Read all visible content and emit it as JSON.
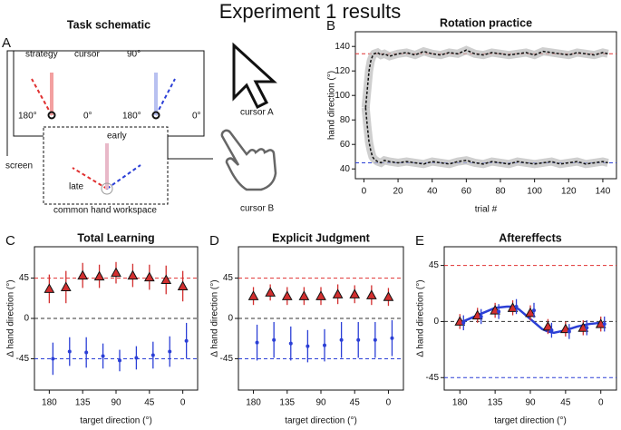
{
  "title": "Experiment 1 results",
  "schematic": {
    "label": "A",
    "title": "Task schematic",
    "strategy": "strategy",
    "cursor": "cursor",
    "deg90": "90°",
    "deg180a": "180°",
    "deg0a": "0°",
    "deg180b": "180°",
    "deg0b": "0°",
    "screen": "screen",
    "early": "early",
    "late": "late",
    "workspace": "common hand workspace",
    "cursorA": "cursor A",
    "cursorB": "cursor B"
  },
  "chart_data": [
    {
      "type": "line",
      "label": "B",
      "title": "Rotation practice",
      "xlabel": "trial #",
      "ylabel": "hand direction (°)",
      "xlim": [
        -5,
        148
      ],
      "ylim": [
        32,
        152
      ],
      "xticks": [
        0,
        20,
        40,
        60,
        80,
        100,
        120,
        140
      ],
      "yticks": [
        40,
        60,
        80,
        100,
        120,
        140
      ],
      "x": [
        1,
        2,
        3,
        4,
        5,
        6,
        8,
        10,
        12,
        15,
        20,
        25,
        30,
        35,
        40,
        45,
        50,
        55,
        60,
        65,
        70,
        75,
        80,
        85,
        90,
        95,
        100,
        105,
        110,
        115,
        120,
        125,
        130,
        135,
        140,
        143
      ],
      "hlines": [
        {
          "y": 134,
          "color": "#e03030"
        },
        {
          "y": 45,
          "color": "#2b3fd6"
        }
      ],
      "series": [
        {
          "color": "#111111",
          "values": [
            90,
            105,
            120,
            128,
            132,
            134,
            135,
            133,
            134,
            132,
            134,
            135,
            133,
            136,
            134,
            133,
            135,
            134,
            137,
            134,
            133,
            135,
            134,
            133,
            134,
            135,
            133,
            136,
            135,
            134,
            133,
            135,
            134,
            133,
            135,
            134
          ]
        },
        {
          "color": "#111111",
          "values": [
            90,
            75,
            62,
            55,
            50,
            48,
            46,
            45,
            47,
            46,
            45,
            46,
            45,
            44,
            46,
            45,
            44,
            46,
            47,
            45,
            44,
            46,
            45,
            44,
            46,
            45,
            44,
            45,
            46,
            44,
            45,
            46,
            44,
            45,
            46,
            45
          ]
        }
      ]
    },
    {
      "type": "errorbar",
      "label": "C",
      "title": "Total Learning",
      "xlabel": "target direction (°)",
      "ylabel": "Δ hand direction (°)",
      "xlim": [
        200,
        -20
      ],
      "ylim": [
        -80,
        80
      ],
      "xticks": [
        180,
        135,
        90,
        45,
        0
      ],
      "yticks": [
        45,
        0,
        -45
      ],
      "x": [
        180,
        157.5,
        135,
        112.5,
        90,
        67.5,
        45,
        22.5,
        0
      ],
      "hlines": [
        {
          "y": 45,
          "color": "#e03030"
        },
        {
          "y": 0,
          "color": "#333333"
        },
        {
          "y": -45,
          "color": "#2b3fd6"
        }
      ],
      "series": [
        {
          "color": "#d32f2f",
          "marker": "triangle",
          "values": [
            33,
            35,
            48,
            47,
            51,
            48,
            46,
            43,
            36
          ],
          "errors": [
            16,
            18,
            14,
            13,
            12,
            13,
            14,
            16,
            17
          ]
        },
        {
          "color": "#2b3fd6",
          "marker": "circle",
          "values": [
            -45,
            -37,
            -38,
            -42,
            -47,
            -44,
            -41,
            -37,
            -25
          ],
          "errors": [
            18,
            16,
            17,
            14,
            12,
            13,
            15,
            17,
            20
          ]
        }
      ]
    },
    {
      "type": "errorbar",
      "label": "D",
      "title": "Explicit Judgment",
      "xlabel": "target direction (°)",
      "ylabel": "Δ hand direction (°)",
      "xlim": [
        200,
        -20
      ],
      "ylim": [
        -80,
        80
      ],
      "xticks": [
        180,
        135,
        90,
        45,
        0
      ],
      "yticks": [
        45,
        0,
        -45
      ],
      "x": [
        180,
        157.5,
        135,
        112.5,
        90,
        67.5,
        45,
        22.5,
        0
      ],
      "hlines": [
        {
          "y": 45,
          "color": "#e03030"
        },
        {
          "y": 0,
          "color": "#333333"
        },
        {
          "y": -45,
          "color": "#2b3fd6"
        }
      ],
      "series": [
        {
          "color": "#d32f2f",
          "marker": "triangle",
          "values": [
            25,
            29,
            25,
            25,
            25,
            27,
            27,
            26,
            24
          ],
          "errors": [
            10,
            9,
            10,
            10,
            10,
            11,
            10,
            11,
            10
          ]
        },
        {
          "color": "#2b3fd6",
          "marker": "circle",
          "values": [
            -27,
            -24,
            -28,
            -31,
            -30,
            -24,
            -24,
            -24,
            -22
          ],
          "errors": [
            20,
            20,
            19,
            18,
            18,
            20,
            20,
            20,
            20
          ]
        }
      ]
    },
    {
      "type": "errorbar",
      "label": "E",
      "title": "Aftereffects",
      "xlabel": "target direction (°)",
      "ylabel": "Δ hand direction (°)",
      "xlim": [
        200,
        -20
      ],
      "ylim": [
        -55,
        60
      ],
      "xticks": [
        180,
        135,
        90,
        45,
        0
      ],
      "yticks": [
        45,
        0,
        -45
      ],
      "x": [
        180,
        157.5,
        135,
        112.5,
        90,
        67.5,
        45,
        22.5,
        0
      ],
      "hlines": [
        {
          "y": 45,
          "color": "#e03030"
        },
        {
          "y": 0,
          "color": "#333333"
        },
        {
          "y": -45,
          "color": "#2b3fd6"
        }
      ],
      "series": [
        {
          "color": "#2b3fd6",
          "line": true,
          "x": [
            180,
            165,
            150,
            135,
            120,
            112.5,
            105,
            90,
            75,
            67.5,
            60,
            45,
            30,
            15,
            0
          ],
          "values": [
            -1,
            3,
            7,
            11,
            12,
            12,
            10,
            2,
            -6,
            -8,
            -9,
            -7,
            -4,
            -2,
            -1
          ]
        },
        {
          "color": "#d32f2f",
          "marker": "triangle",
          "values": [
            0,
            5,
            9,
            11,
            7,
            -4,
            -6,
            -5,
            -2
          ],
          "errors": [
            6,
            6,
            6,
            6,
            6,
            6,
            6,
            6,
            6
          ]
        },
        {
          "color": "#2b3fd6",
          "marker": "circle",
          "values": [
            -1,
            4,
            8,
            12,
            9,
            -7,
            -8,
            -5,
            -2
          ],
          "errors": [
            6,
            6,
            6,
            6,
            6,
            6,
            6,
            6,
            6
          ]
        }
      ]
    }
  ]
}
